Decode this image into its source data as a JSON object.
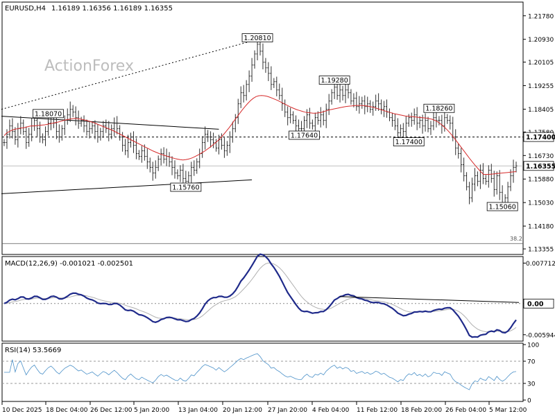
{
  "chart_data": {
    "type": "line",
    "symbol_label": "EURUSD,H4",
    "ohlc_text": "1.16189 1.16356 1.16189 1.16355",
    "watermark": "ActionForex",
    "x_labels": [
      "10 Dec 2025",
      "18 Dec 04:00",
      "26 Dec 12:00",
      "5 Jan 20:00",
      "13 Jan 04:00",
      "20 Jan 12:00",
      "27 Jan 20:00",
      "4 Feb 04:00",
      "11 Feb 12:00",
      "18 Feb 20:00",
      "26 Feb 04:00",
      "5 Mar 12:00"
    ],
    "price_panel": {
      "y_ticks": [
        "1.21780",
        "1.20930",
        "1.20105",
        "1.19255",
        "1.18405",
        "1.17580",
        "1.16730",
        "1.15880",
        "1.15030",
        "1.14180",
        "1.13355"
      ],
      "ylim": [
        1.1318,
        1.2225
      ],
      "current_label": "1.16355",
      "current_value": 1.16355,
      "level_label": "1.17400",
      "level_value": 1.174,
      "fib_label": "38.2",
      "fib_value": 1.1355,
      "annotations": [
        {
          "label": "1.18070",
          "value": 1.1807,
          "bar": 16
        },
        {
          "label": "1.15760",
          "value": 1.1576,
          "bar": 66
        },
        {
          "label": "1.20810",
          "value": 1.2081,
          "bar": 92
        },
        {
          "label": "1.17640",
          "value": 1.1764,
          "bar": 109
        },
        {
          "label": "1.19280",
          "value": 1.1928,
          "bar": 120
        },
        {
          "label": "1.17400",
          "value": 1.174,
          "bar": 147
        },
        {
          "label": "1.18260",
          "value": 1.1826,
          "bar": 158
        },
        {
          "label": "1.15060",
          "value": 1.1506,
          "bar": 181
        }
      ],
      "close": [
        1.172,
        1.175,
        1.178,
        1.176,
        1.173,
        1.177,
        1.179,
        1.176,
        1.172,
        1.175,
        1.178,
        1.18,
        1.177,
        1.174,
        1.173,
        1.176,
        1.179,
        1.181,
        1.179,
        1.176,
        1.174,
        1.177,
        1.18,
        1.182,
        1.184,
        1.183,
        1.181,
        1.179,
        1.18,
        1.178,
        1.176,
        1.177,
        1.178,
        1.176,
        1.174,
        1.176,
        1.178,
        1.177,
        1.175,
        1.177,
        1.179,
        1.177,
        1.174,
        1.171,
        1.169,
        1.172,
        1.174,
        1.171,
        1.168,
        1.167,
        1.169,
        1.167,
        1.165,
        1.163,
        1.161,
        1.163,
        1.166,
        1.168,
        1.166,
        1.167,
        1.165,
        1.163,
        1.161,
        1.16,
        1.162,
        1.159,
        1.158,
        1.16,
        1.163,
        1.162,
        1.165,
        1.168,
        1.172,
        1.175,
        1.174,
        1.173,
        1.172,
        1.17,
        1.173,
        1.171,
        1.169,
        1.171,
        1.174,
        1.177,
        1.181,
        1.186,
        1.19,
        1.189,
        1.193,
        1.196,
        1.2,
        1.204,
        1.2075,
        1.205,
        1.201,
        1.199,
        1.197,
        1.193,
        1.194,
        1.191,
        1.189,
        1.186,
        1.183,
        1.181,
        1.182,
        1.18,
        1.178,
        1.177,
        1.177,
        1.18,
        1.182,
        1.179,
        1.178,
        1.181,
        1.18,
        1.182,
        1.18,
        1.184,
        1.187,
        1.19,
        1.192,
        1.189,
        1.191,
        1.189,
        1.191,
        1.19,
        1.187,
        1.188,
        1.185,
        1.186,
        1.187,
        1.185,
        1.186,
        1.184,
        1.185,
        1.187,
        1.186,
        1.184,
        1.185,
        1.183,
        1.181,
        1.18,
        1.178,
        1.1755,
        1.177,
        1.176,
        1.179,
        1.181,
        1.18,
        1.182,
        1.179,
        1.18,
        1.178,
        1.18,
        1.177,
        1.178,
        1.181,
        1.18,
        1.18,
        1.178,
        1.181,
        1.18,
        1.179,
        1.174,
        1.17,
        1.168,
        1.164,
        1.16,
        1.156,
        1.152,
        1.157,
        1.16,
        1.158,
        1.162,
        1.159,
        1.158,
        1.162,
        1.159,
        1.155,
        1.16,
        1.154,
        1.15,
        1.152,
        1.156,
        1.16,
        1.163,
        1.16355
      ],
      "ma": [
        1.1745,
        1.1755,
        1.176,
        1.1765,
        1.1768,
        1.177,
        1.1772,
        1.1773,
        1.1775,
        1.1778,
        1.178,
        1.178,
        1.1781,
        1.1782,
        1.1783,
        1.1784,
        1.1786,
        1.1788,
        1.179,
        1.1792,
        1.1794,
        1.1797,
        1.18,
        1.1802,
        1.1804,
        1.1806,
        1.1807,
        1.1806,
        1.1805,
        1.1803,
        1.1801,
        1.1798,
        1.1795,
        1.1792,
        1.1788,
        1.1784,
        1.178,
        1.1776,
        1.1772,
        1.1768,
        1.1764,
        1.1759,
        1.1754,
        1.1749,
        1.1744,
        1.1739,
        1.1734,
        1.1729,
        1.1724,
        1.1719,
        1.1714,
        1.1709,
        1.1704,
        1.1699,
        1.1694,
        1.1689,
        1.1685,
        1.1681,
        1.1677,
        1.1674,
        1.1671,
        1.1668,
        1.1665,
        1.1662,
        1.166,
        1.1658,
        1.1657,
        1.1658,
        1.166,
        1.1663,
        1.1667,
        1.1672,
        1.1677,
        1.1683,
        1.1689,
        1.1696,
        1.1703,
        1.1711,
        1.1719,
        1.1728,
        1.1738,
        1.1749,
        1.1761,
        1.1773,
        1.1786,
        1.18,
        1.1813,
        1.1826,
        1.1839,
        1.1851,
        1.1862,
        1.1872,
        1.188,
        1.1886,
        1.1889,
        1.189,
        1.1889,
        1.1887,
        1.1884,
        1.188,
        1.1876,
        1.1872,
        1.1867,
        1.1862,
        1.1857,
        1.1852,
        1.1847,
        1.1843,
        1.1839,
        1.1836,
        1.1833,
        1.183,
        1.1828,
        1.1827,
        1.1826,
        1.1826,
        1.1827,
        1.1829,
        1.1832,
        1.1835,
        1.1838,
        1.184,
        1.1842,
        1.1844,
        1.1846,
        1.1848,
        1.185,
        1.1851,
        1.1852,
        1.1853,
        1.1854,
        1.1854,
        1.1854,
        1.1853,
        1.1852,
        1.185,
        1.1848,
        1.1845,
        1.1842,
        1.1839,
        1.1836,
        1.1833,
        1.183,
        1.1827,
        1.1824,
        1.1822,
        1.182,
        1.1818,
        1.1816,
        1.1815,
        1.1814,
        1.1813,
        1.1812,
        1.1811,
        1.181,
        1.1809,
        1.1808,
        1.1806,
        1.1804,
        1.18,
        1.1795,
        1.1788,
        1.178,
        1.1771,
        1.1761,
        1.175,
        1.1738,
        1.1725,
        1.1712,
        1.1699,
        1.1686,
        1.1673,
        1.166,
        1.1648,
        1.1636,
        1.1625,
        1.1614,
        1.1605,
        1.1605,
        1.1605,
        1.1606,
        1.1607,
        1.1608,
        1.1609,
        1.161,
        1.1611,
        1.1612,
        1.1613,
        1.1614,
        1.1615
      ]
    },
    "macd_panel": {
      "label": "MACD(12,26,9) -0.001021 -0.002501",
      "y_ticks": [
        "0.007712",
        "0.00",
        "-0.005944"
      ],
      "ylim": [
        -0.0069,
        0.0087
      ],
      "current_label": "0.00",
      "current_value": 0
    },
    "rsi_panel": {
      "label": "RSI(14) 53.5669",
      "y_ticks": [
        "100",
        "70",
        "30",
        "0"
      ],
      "ylim": [
        0,
        100
      ]
    }
  }
}
